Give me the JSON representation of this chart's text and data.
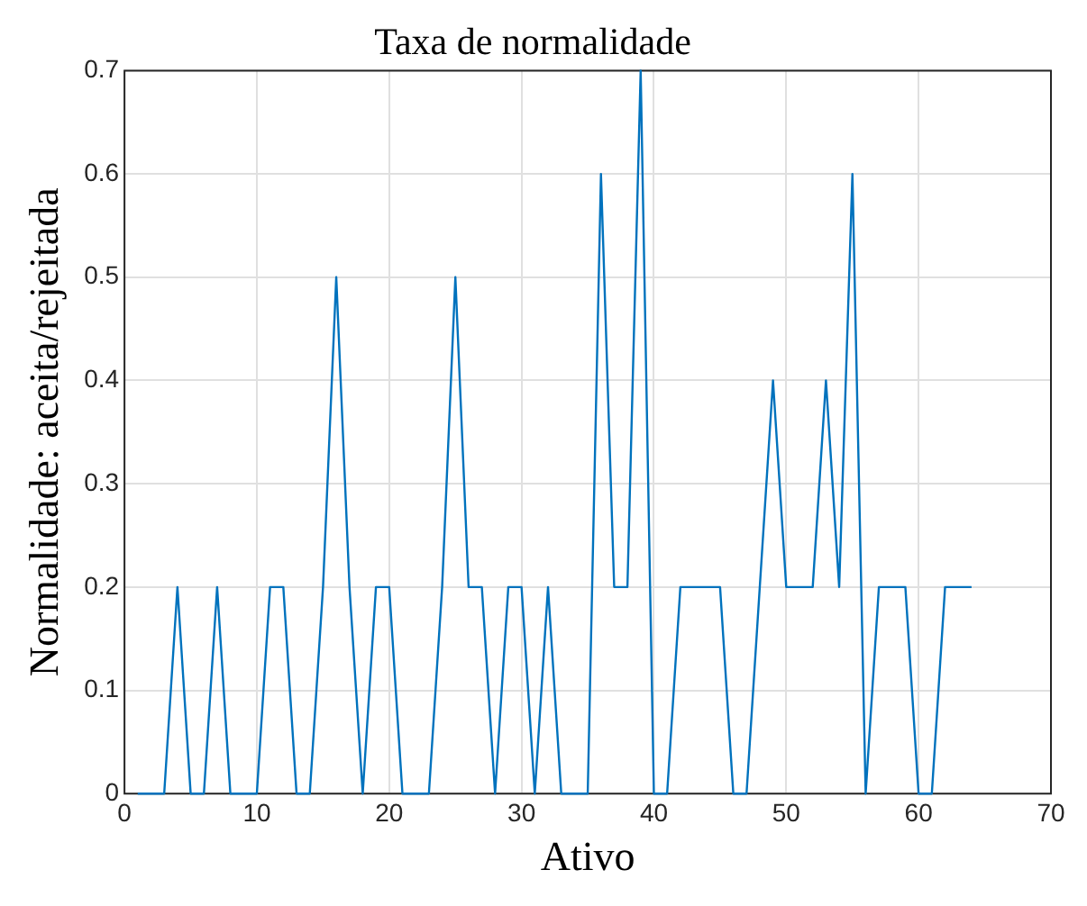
{
  "chart_data": {
    "type": "line",
    "title": "Taxa de normalidade",
    "xlabel": "Ativo",
    "ylabel": "Normalidade: aceita/rejeitada",
    "x": [
      1,
      2,
      3,
      4,
      5,
      6,
      7,
      8,
      9,
      10,
      11,
      12,
      13,
      14,
      15,
      16,
      17,
      18,
      19,
      20,
      21,
      22,
      23,
      24,
      25,
      26,
      27,
      28,
      29,
      30,
      31,
      32,
      33,
      34,
      35,
      36,
      37,
      38,
      39,
      40,
      41,
      42,
      43,
      44,
      45,
      46,
      47,
      48,
      49,
      50,
      51,
      52,
      53,
      54,
      55,
      56,
      57,
      58,
      59,
      60,
      61,
      62,
      63,
      64
    ],
    "series": [
      {
        "color": "#0072bd",
        "values": [
          0,
          0,
          0,
          0.2,
          0,
          0,
          0.2,
          0,
          0,
          0,
          0.2,
          0.2,
          0,
          0,
          0.2,
          0.5,
          0.2,
          0,
          0.2,
          0.2,
          0,
          0,
          0,
          0.2,
          0.5,
          0.2,
          0.2,
          0,
          0.2,
          0.2,
          0,
          0.2,
          0,
          0,
          0,
          0.6,
          0.2,
          0.2,
          0.7,
          0,
          0,
          0.2,
          0.2,
          0.2,
          0.2,
          0,
          0,
          0.2,
          0.4,
          0.2,
          0.2,
          0.2,
          0.4,
          0.2,
          0.6,
          0,
          0.2,
          0.2,
          0.2,
          0,
          0,
          0.2,
          0.2,
          0.2
        ]
      }
    ],
    "xlim": [
      0,
      70
    ],
    "xticks": [
      0,
      10,
      20,
      30,
      40,
      50,
      60,
      70
    ],
    "ylim": [
      0,
      0.7
    ],
    "yticks": [
      0,
      0.1,
      0.2,
      0.3,
      0.4,
      0.5,
      0.6,
      0.7
    ],
    "grid": true,
    "legend": false,
    "marker": "none",
    "line_style": "solid"
  }
}
